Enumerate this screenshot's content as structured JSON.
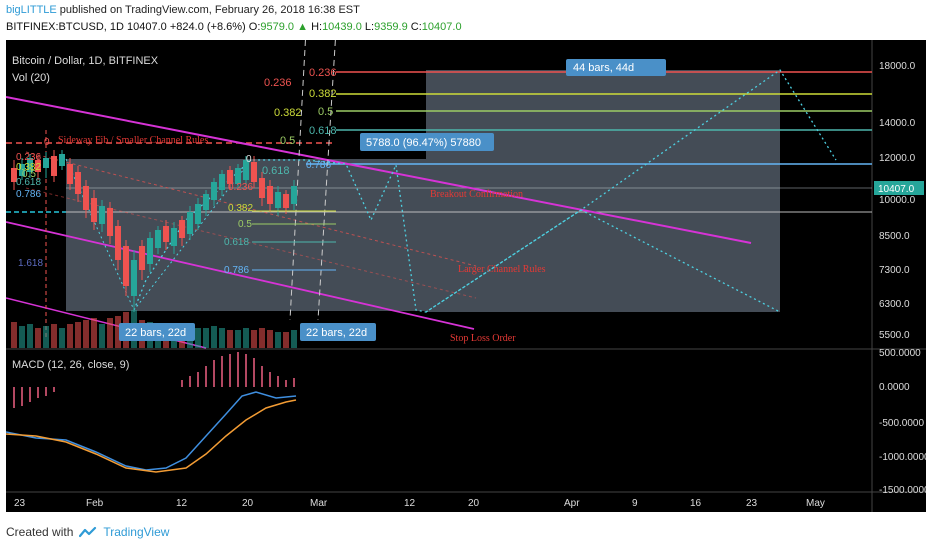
{
  "header": {
    "user": "bigLITTLE",
    "published": " published on TradingView.com, February 26, 2018 16:38 EST",
    "symbol": "BITFINEX:BTCUSD, 1D",
    "last": "10407.0",
    "change_arrow": "▲",
    "change": "+824.0 (+8.6%)",
    "o_label": "O:",
    "o": "9579.0",
    "h_label": "H:",
    "h": "10439.0",
    "l_label": "L:",
    "l": "9359.9",
    "c_label": "C:",
    "c": "10407.0"
  },
  "chart": {
    "pair_title": "Bitcoin / Dollar, 1D, BITFINEX",
    "vol_label": "Vol (20)",
    "price_axis": [
      "18000.0",
      "14000.0",
      "12000.0",
      "10000.0",
      "8500.0",
      "7300.0",
      "6300.0",
      "5500.0"
    ],
    "last_price_tag": "10407.0",
    "macd_title": "MACD (12, 26, close, 9)",
    "macd_axis": [
      "500.0000",
      "0.0000",
      "-500.0000",
      "-1000.0000",
      "-1500.0000"
    ],
    "time_axis": [
      "23",
      "Feb",
      "12",
      "20",
      "Mar",
      "12",
      "20",
      "Apr",
      "9",
      "16",
      "23",
      "May"
    ],
    "fib_left": [
      "0.236",
      "0.382",
      "0.5",
      "0.618",
      "0.786"
    ],
    "fib_mid": [
      "0",
      "0.236",
      "0.382",
      "0.5",
      "0.618",
      "0.786"
    ],
    "fib_upper": [
      "0.236",
      "0.382",
      "0.5",
      "0.618"
    ],
    "fib_left_zero": "0",
    "fib_1618": "1.618",
    "measure_top": "44 bars, 44d",
    "measure_mid": "5788.0 (96.47%) 57880",
    "measure_bottom_left": "22 bars, 22d",
    "measure_bottom_right": "22 bars, 22d",
    "ann_sideway": "Sideway Fib / Smaller Channel Rules",
    "ann_breakout": "Breakout Confirmation",
    "ann_larger": "Larger Channel Rules",
    "ann_stoploss": "Stop Loss Order",
    "colors": {
      "bull": "#26a69a",
      "bear": "#ef5350",
      "magenta": "#d633d6",
      "tag": "#4a90c8"
    }
  },
  "footer": {
    "created_with": "Created with",
    "brand": "TradingView",
    "logo_icon": "tradingview-logo-icon"
  }
}
